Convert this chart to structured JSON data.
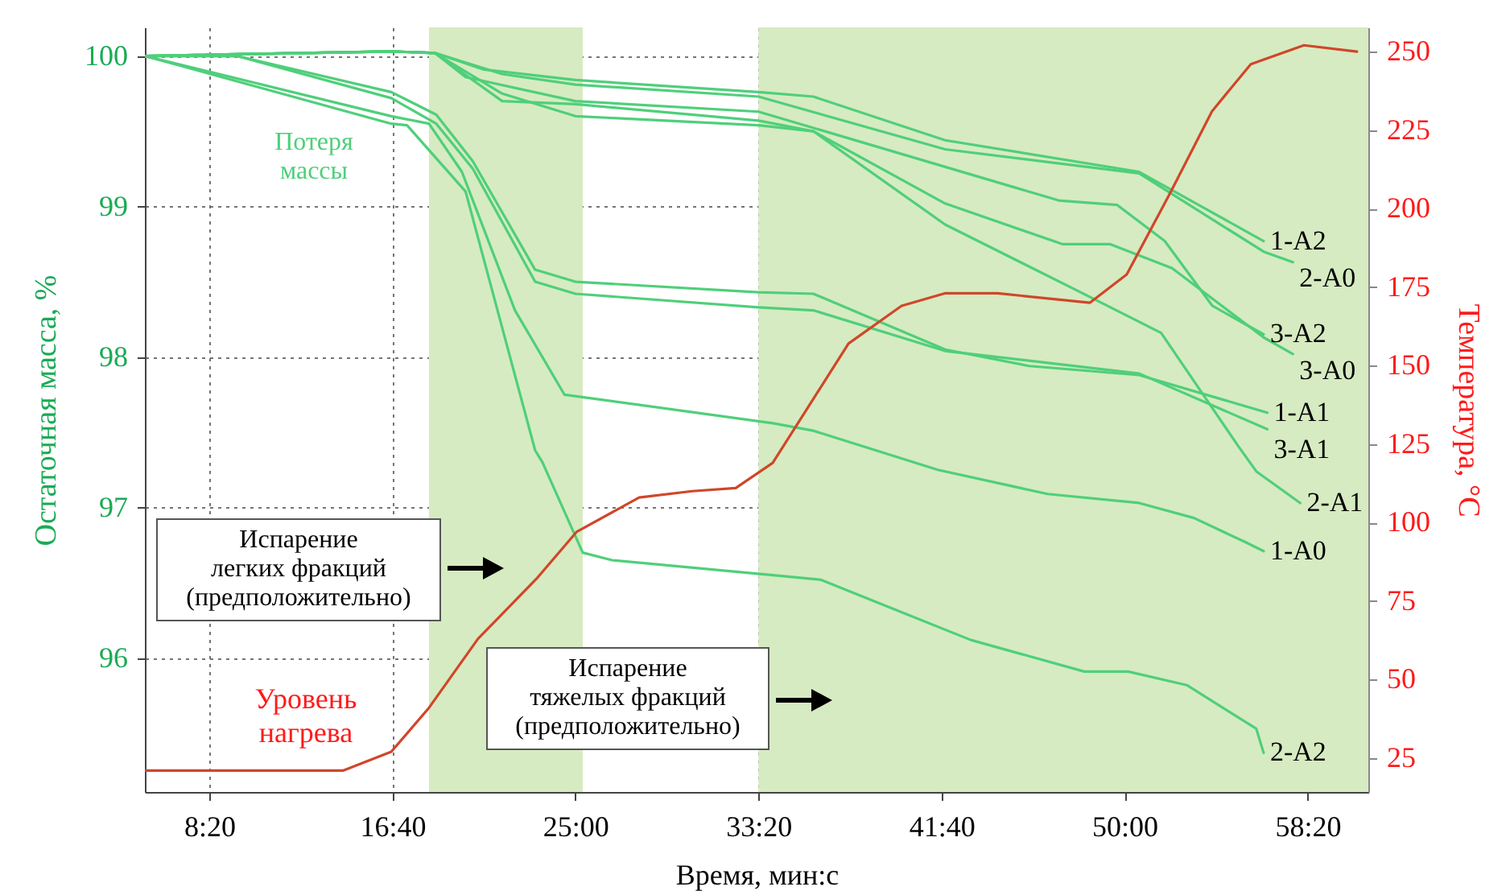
{
  "chart_data": {
    "type": "line",
    "xlabel": "Время, мин:с",
    "ylabel": "Остаточная масса, %",
    "y2label": "Температура, °С",
    "xlim": [
      324,
      3666
    ],
    "xticks": [
      {
        "value": 500,
        "label": "8:20"
      },
      {
        "value": 1000,
        "label": "16:40"
      },
      {
        "value": 1500,
        "label": "25:00"
      },
      {
        "value": 2000,
        "label": "33:20"
      },
      {
        "value": 2500,
        "label": "41:40"
      },
      {
        "value": 3000,
        "label": "50:00"
      },
      {
        "value": 3500,
        "label": "58:20"
      }
    ],
    "ylim": [
      95.11,
      100.19
    ],
    "yticks": [
      96,
      97,
      98,
      99,
      100
    ],
    "y2lim": [
      14.2,
      257.7
    ],
    "y2ticks": [
      25,
      50,
      75,
      100,
      125,
      150,
      175,
      200,
      225,
      250
    ],
    "grid": true,
    "bands": [
      {
        "axis": "x",
        "from": 1100,
        "to": 1520,
        "color": "#d6ebc1"
      },
      {
        "axis": "x",
        "from": 2000,
        "to": 3666,
        "color": "#d6ebc1"
      }
    ],
    "annotations": [
      "Потеря\nмассы",
      "Испарение\nлегких фракций\n(предположительно)",
      "Испарение\nтяжелых фракций\n(предположительно)"
    ],
    "series": [
      {
        "name": "1-A2",
        "color": "#4fcf7a",
        "x": [
          324,
          997,
          1116,
          1250,
          1500,
          2000,
          2150,
          2510,
          3040,
          3380
        ],
        "values": [
          100,
          100.03,
          100.02,
          99.91,
          99.84,
          99.76,
          99.73,
          99.44,
          99.23,
          98.77
        ]
      },
      {
        "name": "2-A0",
        "color": "#4fcf7a",
        "x": [
          324,
          997,
          1116,
          1300,
          1500,
          2000,
          2510,
          3040,
          3380,
          3460
        ],
        "values": [
          100,
          100.03,
          100.02,
          99.88,
          99.81,
          99.73,
          99.38,
          99.22,
          98.7,
          98.63
        ]
      },
      {
        "name": "3-A2",
        "color": "#4fcf7a",
        "x": [
          324,
          997,
          1116,
          1200,
          1500,
          2000,
          2820,
          2980,
          3110,
          3240,
          3380
        ],
        "values": [
          100,
          100.03,
          100.02,
          99.86,
          99.7,
          99.63,
          99.04,
          99.01,
          98.77,
          98.34,
          98.15
        ]
      },
      {
        "name": "3-A0",
        "color": "#4fcf7a",
        "x": [
          324,
          997,
          1116,
          1300,
          1500,
          2000,
          2150,
          2510,
          2830,
          2960,
          3130,
          3380,
          3460
        ],
        "values": [
          100,
          100.03,
          100.02,
          99.7,
          99.68,
          99.57,
          99.5,
          99.02,
          98.75,
          98.75,
          98.59,
          98.13,
          98.02
        ]
      },
      {
        "name": "1-A1",
        "color": "#4fcf7a",
        "x": [
          324,
          575,
          997,
          1120,
          1220,
          1390,
          1500,
          2000,
          2150,
          2510,
          2740,
          3040,
          3390
        ],
        "values": [
          100,
          100,
          99.76,
          99.61,
          99.3,
          98.58,
          98.5,
          98.43,
          98.42,
          98.05,
          97.94,
          97.88,
          97.63
        ]
      },
      {
        "name": "2-A1",
        "color": "#4fcf7a",
        "x": [
          324,
          997,
          1116,
          1300,
          1500,
          2000,
          2150,
          2510,
          2880,
          3100,
          3310,
          3360,
          3480
        ],
        "values": [
          100,
          100.03,
          100.02,
          99.75,
          99.6,
          99.54,
          99.5,
          98.88,
          98.43,
          98.16,
          97.41,
          97.24,
          97.03
        ]
      },
      {
        "name": "3-A1",
        "color": "#4fcf7a",
        "x": [
          324,
          575,
          997,
          1120,
          1220,
          1390,
          1500,
          2000,
          2150,
          2510,
          3040,
          3390
        ],
        "values": [
          100,
          100,
          99.72,
          99.55,
          99.25,
          98.5,
          98.42,
          98.33,
          98.31,
          98.04,
          97.89,
          97.52
        ]
      },
      {
        "name": "1-A0",
        "color": "#4fcf7a",
        "x": [
          324,
          997,
          1100,
          1190,
          1335,
          1470,
          2040,
          2150,
          2490,
          2790,
          3040,
          3190,
          3330,
          3380
        ],
        "values": [
          100,
          99.6,
          99.55,
          99.23,
          98.31,
          97.75,
          97.56,
          97.51,
          97.25,
          97.09,
          97.03,
          96.93,
          96.77,
          96.71
        ]
      },
      {
        "name": "2-A2",
        "color": "#4fcf7a",
        "x": [
          324,
          997,
          1040,
          1200,
          1390,
          1410,
          1520,
          1600,
          2040,
          2170,
          2580,
          2890,
          3010,
          3170,
          3360,
          3380
        ],
        "values": [
          100,
          99.55,
          99.54,
          99.1,
          97.38,
          97.3,
          96.7,
          96.65,
          96.55,
          96.52,
          96.12,
          95.91,
          95.91,
          95.82,
          95.53,
          95.37
        ]
      },
      {
        "name": "Уровень нагрева",
        "color": "#d0462a",
        "axis": "y2",
        "x": [
          324,
          865,
          997,
          1100,
          1234,
          1393,
          1503,
          1674,
          1819,
          1938,
          2039,
          2246,
          2391,
          2509,
          2654,
          2905,
          3006,
          3125,
          3239,
          3345,
          3490,
          3635
        ],
        "values": [
          21,
          21,
          27,
          41,
          63,
          82,
          97,
          108,
          110,
          111,
          119,
          157,
          169,
          173,
          173,
          170,
          179,
          205,
          231,
          246,
          252,
          250
        ]
      }
    ]
  }
}
